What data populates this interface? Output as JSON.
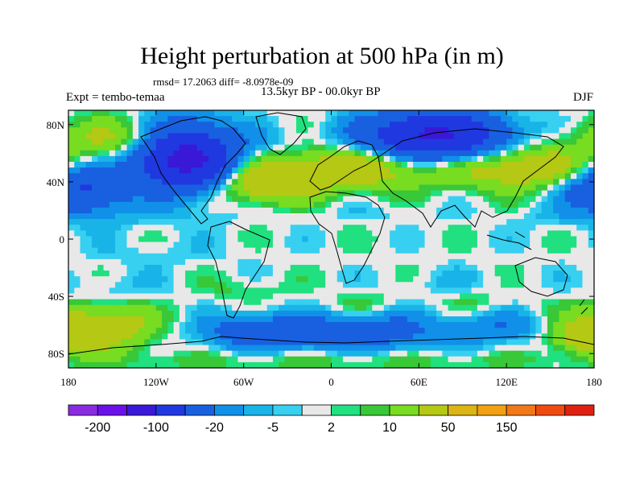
{
  "chart_data": {
    "type": "heatmap",
    "title": "Height perturbation at 500 hPa (in m)",
    "left_string": "Expt = tembo-temaa",
    "center_string": "13.5kyr BP - 00.0kyr BP",
    "right_string": "DJF",
    "stats_string": "rmsd= 17.2063 diff= -8.0978e-09",
    "x_ticks": [
      {
        "value": -180,
        "label": "180"
      },
      {
        "value": -120,
        "label": "120W"
      },
      {
        "value": -60,
        "label": "60W"
      },
      {
        "value": 0,
        "label": "0"
      },
      {
        "value": 60,
        "label": "60E"
      },
      {
        "value": 120,
        "label": "120E"
      },
      {
        "value": 180,
        "label": "180"
      }
    ],
    "y_ticks": [
      {
        "value": 80,
        "label": "80N"
      },
      {
        "value": 40,
        "label": "40N"
      },
      {
        "value": 0,
        "label": "0"
      },
      {
        "value": -40,
        "label": "40S"
      },
      {
        "value": -80,
        "label": "80S"
      }
    ],
    "xlim": [
      -180,
      180
    ],
    "ylim": [
      -90,
      90
    ],
    "colorbar": {
      "colors": [
        "#8a2be2",
        "#6a10e8",
        "#3a18d8",
        "#2038e0",
        "#1860e0",
        "#1090e8",
        "#18b4e8",
        "#38d0f0",
        "#e8e8e8",
        "#20e080",
        "#38c838",
        "#78dc20",
        "#b4c814",
        "#dcb414",
        "#f0a010",
        "#f07818",
        "#f04a10",
        "#e02010"
      ],
      "labels": [
        {
          "boundary": 1,
          "label": "-200"
        },
        {
          "boundary": 3,
          "label": "-100"
        },
        {
          "boundary": 5,
          "label": "-20"
        },
        {
          "boundary": 7,
          "label": "-5"
        },
        {
          "boundary": 9,
          "label": "2"
        },
        {
          "boundary": 11,
          "label": "10"
        },
        {
          "boundary": 13,
          "label": "50"
        },
        {
          "boundary": 15,
          "label": "150"
        }
      ]
    },
    "field_anomalies": [
      {
        "lon": -100,
        "lat": 58,
        "lon_r": 32,
        "lat_r": 22,
        "amp": -130
      },
      {
        "lon": 70,
        "lat": 72,
        "lon_r": 45,
        "lat_r": 16,
        "amp": -110
      },
      {
        "lon": -170,
        "lat": 35,
        "lon_r": 30,
        "lat_r": 16,
        "amp": -55
      },
      {
        "lon": -130,
        "lat": 70,
        "lon_r": 55,
        "lat_r": 14,
        "amp": 30
      },
      {
        "lon": -45,
        "lat": 40,
        "lon_r": 38,
        "lat_r": 14,
        "amp": 40
      },
      {
        "lon": 20,
        "lat": 50,
        "lon_r": 50,
        "lat_r": 14,
        "amp": 35
      },
      {
        "lon": 130,
        "lat": 50,
        "lon_r": 50,
        "lat_r": 15,
        "amp": 35
      },
      {
        "lon": -50,
        "lat": 70,
        "lon_r": 25,
        "lat_r": 10,
        "amp": -8
      },
      {
        "lon": -120,
        "lat": 15,
        "lon_r": 60,
        "lat_r": 8,
        "amp": -4
      },
      {
        "lon": 30,
        "lat": 18,
        "lon_r": 60,
        "lat_r": 6,
        "amp": -3
      },
      {
        "lon": 150,
        "lat": 15,
        "lon_r": 30,
        "lat_r": 8,
        "amp": -4
      },
      {
        "lon": -120,
        "lat": -10,
        "lon_r": 55,
        "lat_r": 10,
        "amp": -4
      },
      {
        "lon": -150,
        "lat": -35,
        "lon_r": 40,
        "lat_r": 10,
        "amp": -6
      },
      {
        "lon": 80,
        "lat": -30,
        "lon_r": 40,
        "lat_r": 10,
        "amp": -4
      },
      {
        "lon": -60,
        "lat": -35,
        "lon_r": 30,
        "lat_r": 8,
        "amp": 6
      },
      {
        "lon": 20,
        "lat": -45,
        "lon_r": 20,
        "lat_r": 8,
        "amp": 8
      },
      {
        "lon": 100,
        "lat": -45,
        "lon_r": 25,
        "lat_r": 8,
        "amp": 6
      },
      {
        "lon": -160,
        "lat": -62,
        "lon_r": 40,
        "lat_r": 16,
        "amp": 35
      },
      {
        "lon": -45,
        "lat": -65,
        "lon_r": 45,
        "lat_r": 12,
        "amp": -35
      },
      {
        "lon": 30,
        "lat": -65,
        "lon_r": 45,
        "lat_r": 13,
        "amp": -30
      },
      {
        "lon": 115,
        "lat": -62,
        "lon_r": 35,
        "lat_r": 12,
        "amp": -18
      },
      {
        "lon": 170,
        "lat": -70,
        "lon_r": 20,
        "lat_r": 10,
        "amp": 20
      },
      {
        "lon": 0,
        "lat": -85,
        "lon_r": 180,
        "lat_r": 6,
        "amp": 8
      }
    ]
  }
}
